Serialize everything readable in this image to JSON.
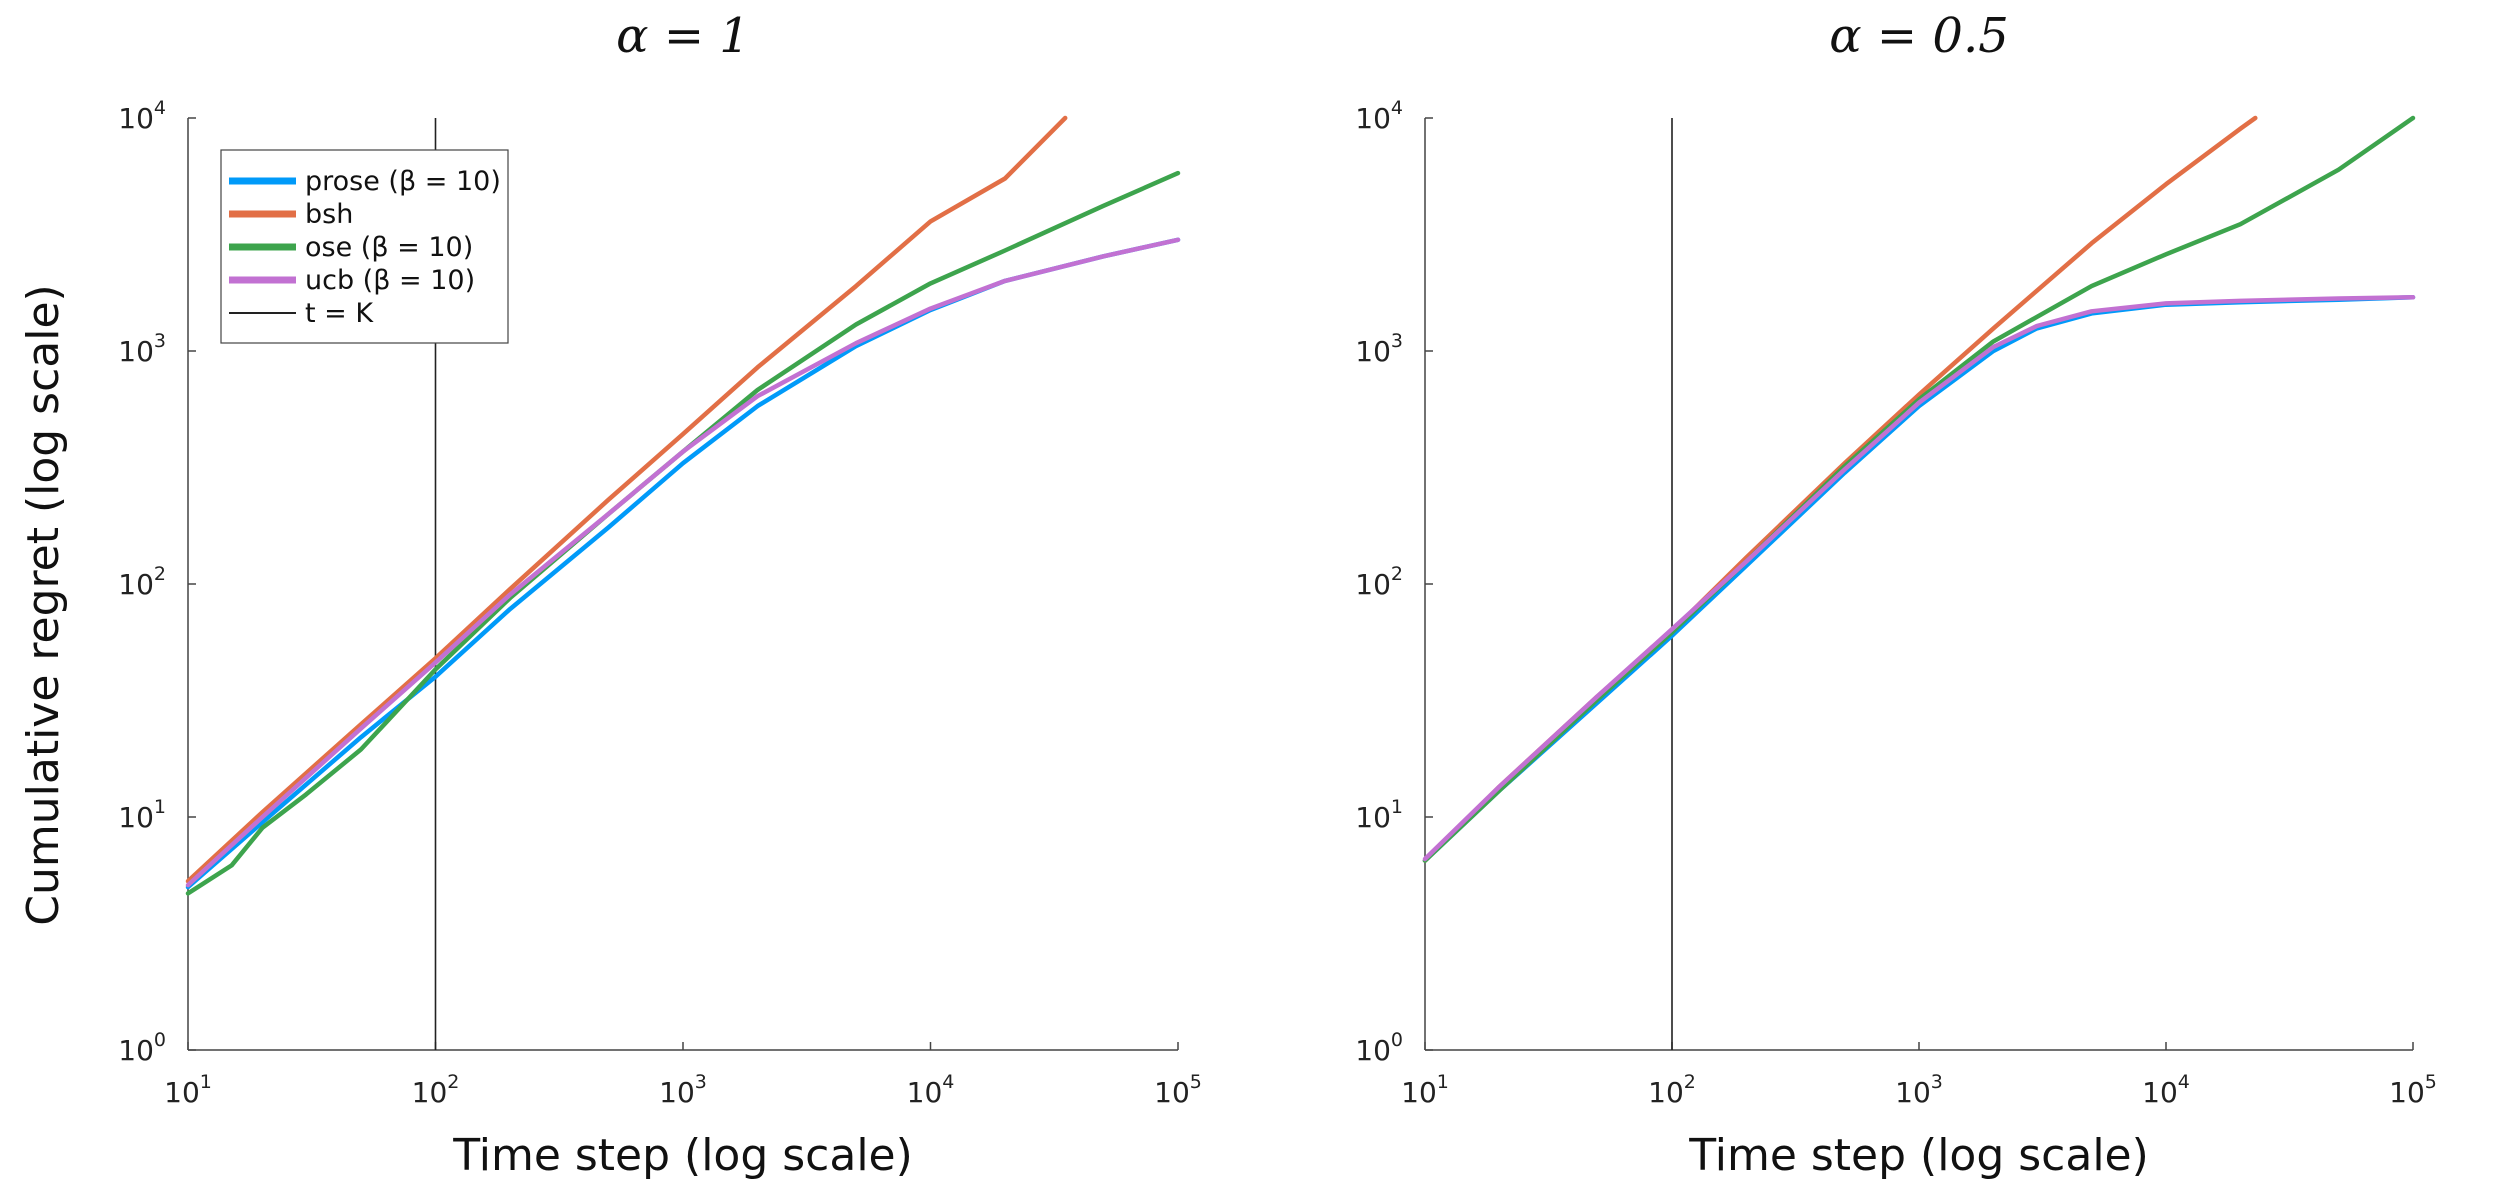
{
  "figure": {
    "ylabel": "Cumulative regret (log scale)"
  },
  "chart_data": [
    {
      "type": "line",
      "title": "α = 1",
      "xlabel": "Time step (log scale)",
      "ylabel": "Cumulative regret (log scale)",
      "xscale": "log",
      "yscale": "log",
      "xlim": [
        10,
        100000
      ],
      "ylim": [
        1,
        10000
      ],
      "xticks": [
        {
          "base": "10",
          "exp": "1"
        },
        {
          "base": "10",
          "exp": "2"
        },
        {
          "base": "10",
          "exp": "3"
        },
        {
          "base": "10",
          "exp": "4"
        },
        {
          "base": "10",
          "exp": "5"
        }
      ],
      "yticks": [
        {
          "base": "10",
          "exp": "0"
        },
        {
          "base": "10",
          "exp": "1"
        },
        {
          "base": "10",
          "exp": "2"
        },
        {
          "base": "10",
          "exp": "3"
        },
        {
          "base": "10",
          "exp": "4"
        }
      ],
      "vline": {
        "x": 100,
        "label": "t = K"
      },
      "legend": "top-left",
      "grid": false,
      "series": [
        {
          "name": "prose (β = 10)",
          "color": "#009af9",
          "x": [
            10,
            20,
            50,
            100,
            200,
            500,
            1000,
            2000,
            5000,
            10000,
            20000,
            50000,
            100000
          ],
          "y": [
            5.0,
            9.5,
            22,
            40,
            78,
            175,
            330,
            580,
            1050,
            1500,
            2000,
            2550,
            3000
          ]
        },
        {
          "name": "bsh",
          "color": "#e26f46",
          "x": [
            10,
            20,
            50,
            100,
            200,
            500,
            1000,
            2000,
            5000,
            10000,
            20000,
            35000
          ],
          "y": [
            5.3,
            10.5,
            25,
            48,
            95,
            230,
            440,
            850,
            1900,
            3600,
            5500,
            10000
          ]
        },
        {
          "name": "ose (β = 10)",
          "color": "#3da44d",
          "x": [
            10,
            15,
            20,
            30,
            50,
            100,
            200,
            500,
            1000,
            2000,
            5000,
            10000,
            20000,
            50000,
            100000
          ],
          "y": [
            4.7,
            6.2,
            9,
            12.5,
            19.5,
            43,
            87,
            200,
            370,
            680,
            1300,
            1950,
            2700,
            4200,
            5800
          ]
        },
        {
          "name": "ucb (β = 10)",
          "color": "#c271d2",
          "x": [
            10,
            20,
            50,
            100,
            200,
            500,
            1000,
            2000,
            5000,
            10000,
            20000,
            50000,
            100000
          ],
          "y": [
            5.1,
            10,
            24,
            46,
            90,
            200,
            370,
            640,
            1080,
            1520,
            2000,
            2550,
            3000
          ]
        }
      ]
    },
    {
      "type": "line",
      "title": "α = 0.5",
      "xlabel": "Time step (log scale)",
      "ylabel": "",
      "xscale": "log",
      "yscale": "log",
      "xlim": [
        10,
        100000
      ],
      "ylim": [
        1,
        10000
      ],
      "xticks": [
        {
          "base": "10",
          "exp": "1"
        },
        {
          "base": "10",
          "exp": "2"
        },
        {
          "base": "10",
          "exp": "3"
        },
        {
          "base": "10",
          "exp": "4"
        },
        {
          "base": "10",
          "exp": "5"
        }
      ],
      "yticks": [
        {
          "base": "10",
          "exp": "0"
        },
        {
          "base": "10",
          "exp": "1"
        },
        {
          "base": "10",
          "exp": "2"
        },
        {
          "base": "10",
          "exp": "3"
        },
        {
          "base": "10",
          "exp": "4"
        }
      ],
      "vline": {
        "x": 100,
        "label": ""
      },
      "legend": "none",
      "grid": false,
      "series": [
        {
          "name": "prose (β = 10)",
          "color": "#009af9",
          "x": [
            10,
            20,
            50,
            100,
            200,
            500,
            1000,
            2000,
            3000,
            5000,
            10000,
            20000,
            50000,
            100000
          ],
          "y": [
            6.5,
            13,
            31,
            60,
            120,
            300,
            580,
            1000,
            1250,
            1450,
            1580,
            1620,
            1660,
            1700
          ]
        },
        {
          "name": "bsh",
          "color": "#e26f46",
          "x": [
            10,
            20,
            50,
            100,
            200,
            500,
            1000,
            2000,
            5000,
            10000,
            20000,
            23000
          ],
          "y": [
            6.5,
            13.5,
            33,
            63,
            130,
            330,
            650,
            1250,
            2900,
            5200,
            9000,
            10000
          ]
        },
        {
          "name": "ose (β = 10)",
          "color": "#3da44d",
          "x": [
            10,
            20,
            50,
            100,
            200,
            500,
            1000,
            2000,
            5000,
            10000,
            20000,
            50000,
            100000
          ],
          "y": [
            6.5,
            13,
            32,
            62,
            125,
            320,
            620,
            1100,
            1900,
            2600,
            3500,
            6000,
            10000
          ]
        },
        {
          "name": "ucb (β = 10)",
          "color": "#c271d2",
          "x": [
            10,
            20,
            50,
            100,
            200,
            500,
            1000,
            2000,
            3000,
            5000,
            10000,
            20000,
            50000,
            100000
          ],
          "y": [
            6.6,
            13.5,
            33,
            64,
            125,
            310,
            600,
            1040,
            1280,
            1480,
            1600,
            1640,
            1680,
            1700
          ]
        }
      ]
    }
  ]
}
